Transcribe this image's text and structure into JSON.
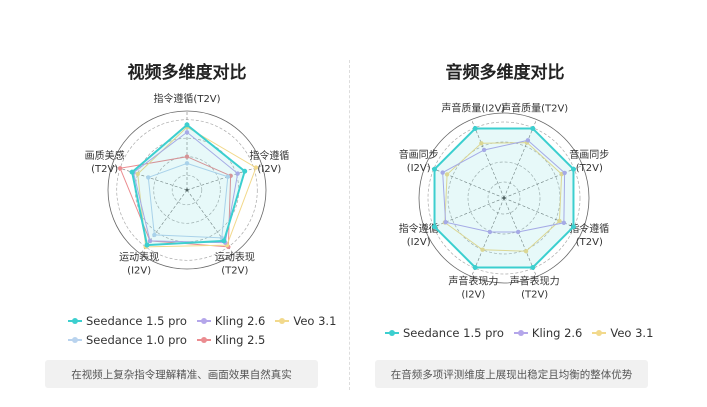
{
  "colors": {
    "seedance15": "#3ccfcf",
    "kling26": "#b4a6ea",
    "veo31": "#f2d98c",
    "seedance10": "#b9d3ee",
    "kling25": "#eb8c90"
  },
  "chart_data": [
    {
      "type": "radar",
      "title": "视频多维度对比",
      "axes": [
        "指令遵循(T2V)",
        "指令遵循\n(I2V)",
        "运动表现\n(T2V)",
        "运动表现\n(I2V)",
        "画质美感\n(T2V)"
      ],
      "range": [
        0,
        100
      ],
      "series": [
        {
          "name": "Seedance 1.5 pro",
          "color": "#3ccfcf",
          "values": [
            88,
            82,
            85,
            92,
            78
          ]
        },
        {
          "name": "Kling 2.6",
          "color": "#b4a6ea",
          "values": [
            78,
            72,
            88,
            85,
            76
          ]
        },
        {
          "name": "Veo 3.1",
          "color": "#f2d98c",
          "values": [
            85,
            98,
            92,
            95,
            70
          ]
        },
        {
          "name": "Seedance 1.0 pro",
          "color": "#b9d3ee",
          "values": [
            36,
            58,
            80,
            75,
            55
          ]
        },
        {
          "name": "Kling 2.5",
          "color": "#eb8c90",
          "values": [
            45,
            62,
            95,
            85,
            95
          ]
        }
      ],
      "legend": [
        [
          "Seedance 1.5 pro",
          "Kling 2.6",
          "Veo 3.1"
        ],
        [
          "Seedance 1.0 pro",
          "Kling 2.5"
        ]
      ],
      "caption": "在视频上复杂指令理解精准、画面效果自然真实"
    },
    {
      "type": "radar",
      "title": "音频多维度对比",
      "axes": [
        "声音质量(T2V)",
        "音画同步\n(T2V)",
        "指令遵循\n(T2V)",
        "声音表现力\n(T2V)",
        "声音表现力\n(I2V)",
        "指令遵循\n(I2V)",
        "音画同步\n(I2V)",
        "声音质量(I2V)"
      ],
      "range": [
        0,
        100
      ],
      "series": [
        {
          "name": "Seedance 1.5 pro",
          "color": "#3ccfcf",
          "values": [
            94,
            94,
            94,
            94,
            94,
            94,
            94,
            94
          ]
        },
        {
          "name": "Kling 2.6",
          "color": "#b4a6ea",
          "values": [
            78,
            82,
            81,
            46,
            46,
            79,
            83,
            65
          ]
        },
        {
          "name": "Veo 3.1",
          "color": "#f2d98c",
          "values": [
            75,
            78,
            75,
            72,
            70,
            80,
            77,
            74
          ]
        }
      ],
      "legend": [
        [
          "Seedance 1.5 pro",
          "Kling 2.6",
          "Veo 3.1"
        ]
      ],
      "caption": "在音频多项评测维度上展现出稳定且均衡的整体优势"
    }
  ]
}
